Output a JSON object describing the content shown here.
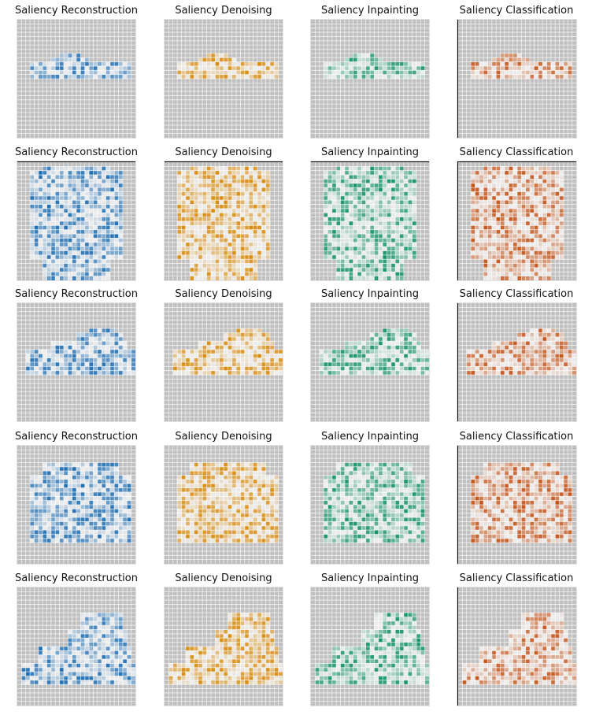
{
  "figure": {
    "grid_rows": 5,
    "grid_cols": 4
  },
  "chart_data": [
    {
      "type": "heatmap",
      "row": 1,
      "col": 1,
      "title": "Saliency Reconstruction",
      "subject": "sandal",
      "colormap": "blue"
    },
    {
      "type": "heatmap",
      "row": 1,
      "col": 2,
      "title": "Saliency Denoising",
      "subject": "sandal",
      "colormap": "orange"
    },
    {
      "type": "heatmap",
      "row": 1,
      "col": 3,
      "title": "Saliency Inpainting",
      "subject": "sandal",
      "colormap": "green"
    },
    {
      "type": "heatmap",
      "row": 1,
      "col": 4,
      "title": "Saliency Classification",
      "subject": "sandal",
      "colormap": "burnt-orange"
    },
    {
      "type": "heatmap",
      "row": 2,
      "col": 1,
      "title": "Saliency Reconstruction",
      "subject": "shirt",
      "colormap": "blue"
    },
    {
      "type": "heatmap",
      "row": 2,
      "col": 2,
      "title": "Saliency Denoising",
      "subject": "shirt",
      "colormap": "orange"
    },
    {
      "type": "heatmap",
      "row": 2,
      "col": 3,
      "title": "Saliency Inpainting",
      "subject": "shirt",
      "colormap": "green"
    },
    {
      "type": "heatmap",
      "row": 2,
      "col": 4,
      "title": "Saliency Classification",
      "subject": "shirt",
      "colormap": "burnt-orange"
    },
    {
      "type": "heatmap",
      "row": 3,
      "col": 1,
      "title": "Saliency Reconstruction",
      "subject": "sneaker",
      "colormap": "blue"
    },
    {
      "type": "heatmap",
      "row": 3,
      "col": 2,
      "title": "Saliency Denoising",
      "subject": "sneaker",
      "colormap": "orange"
    },
    {
      "type": "heatmap",
      "row": 3,
      "col": 3,
      "title": "Saliency Inpainting",
      "subject": "sneaker",
      "colormap": "green"
    },
    {
      "type": "heatmap",
      "row": 3,
      "col": 4,
      "title": "Saliency Classification",
      "subject": "sneaker",
      "colormap": "burnt-orange"
    },
    {
      "type": "heatmap",
      "row": 4,
      "col": 1,
      "title": "Saliency Reconstruction",
      "subject": "bag",
      "colormap": "blue"
    },
    {
      "type": "heatmap",
      "row": 4,
      "col": 2,
      "title": "Saliency Denoising",
      "subject": "bag",
      "colormap": "orange"
    },
    {
      "type": "heatmap",
      "row": 4,
      "col": 3,
      "title": "Saliency Inpainting",
      "subject": "bag",
      "colormap": "green"
    },
    {
      "type": "heatmap",
      "row": 4,
      "col": 4,
      "title": "Saliency Classification",
      "subject": "bag",
      "colormap": "burnt-orange"
    },
    {
      "type": "heatmap",
      "row": 5,
      "col": 1,
      "title": "Saliency Reconstruction",
      "subject": "ankle-boot",
      "colormap": "blue"
    },
    {
      "type": "heatmap",
      "row": 5,
      "col": 2,
      "title": "Saliency Denoising",
      "subject": "ankle-boot",
      "colormap": "orange"
    },
    {
      "type": "heatmap",
      "row": 5,
      "col": 3,
      "title": "Saliency Inpainting",
      "subject": "ankle-boot",
      "colormap": "green"
    },
    {
      "type": "heatmap",
      "row": 5,
      "col": 4,
      "title": "Saliency Classification",
      "subject": "ankle-boot",
      "colormap": "burnt-orange"
    }
  ],
  "colormaps": {
    "blue": "#1f6fb4",
    "orange": "#d98a0b",
    "green": "#15936a",
    "burnt-orange": "#c6551a"
  },
  "styles": {
    "background": "#ffffff",
    "panel_background": "#c0c0c0",
    "gridline_color": "#ffffff",
    "low_saliency_color": "#ececec"
  }
}
